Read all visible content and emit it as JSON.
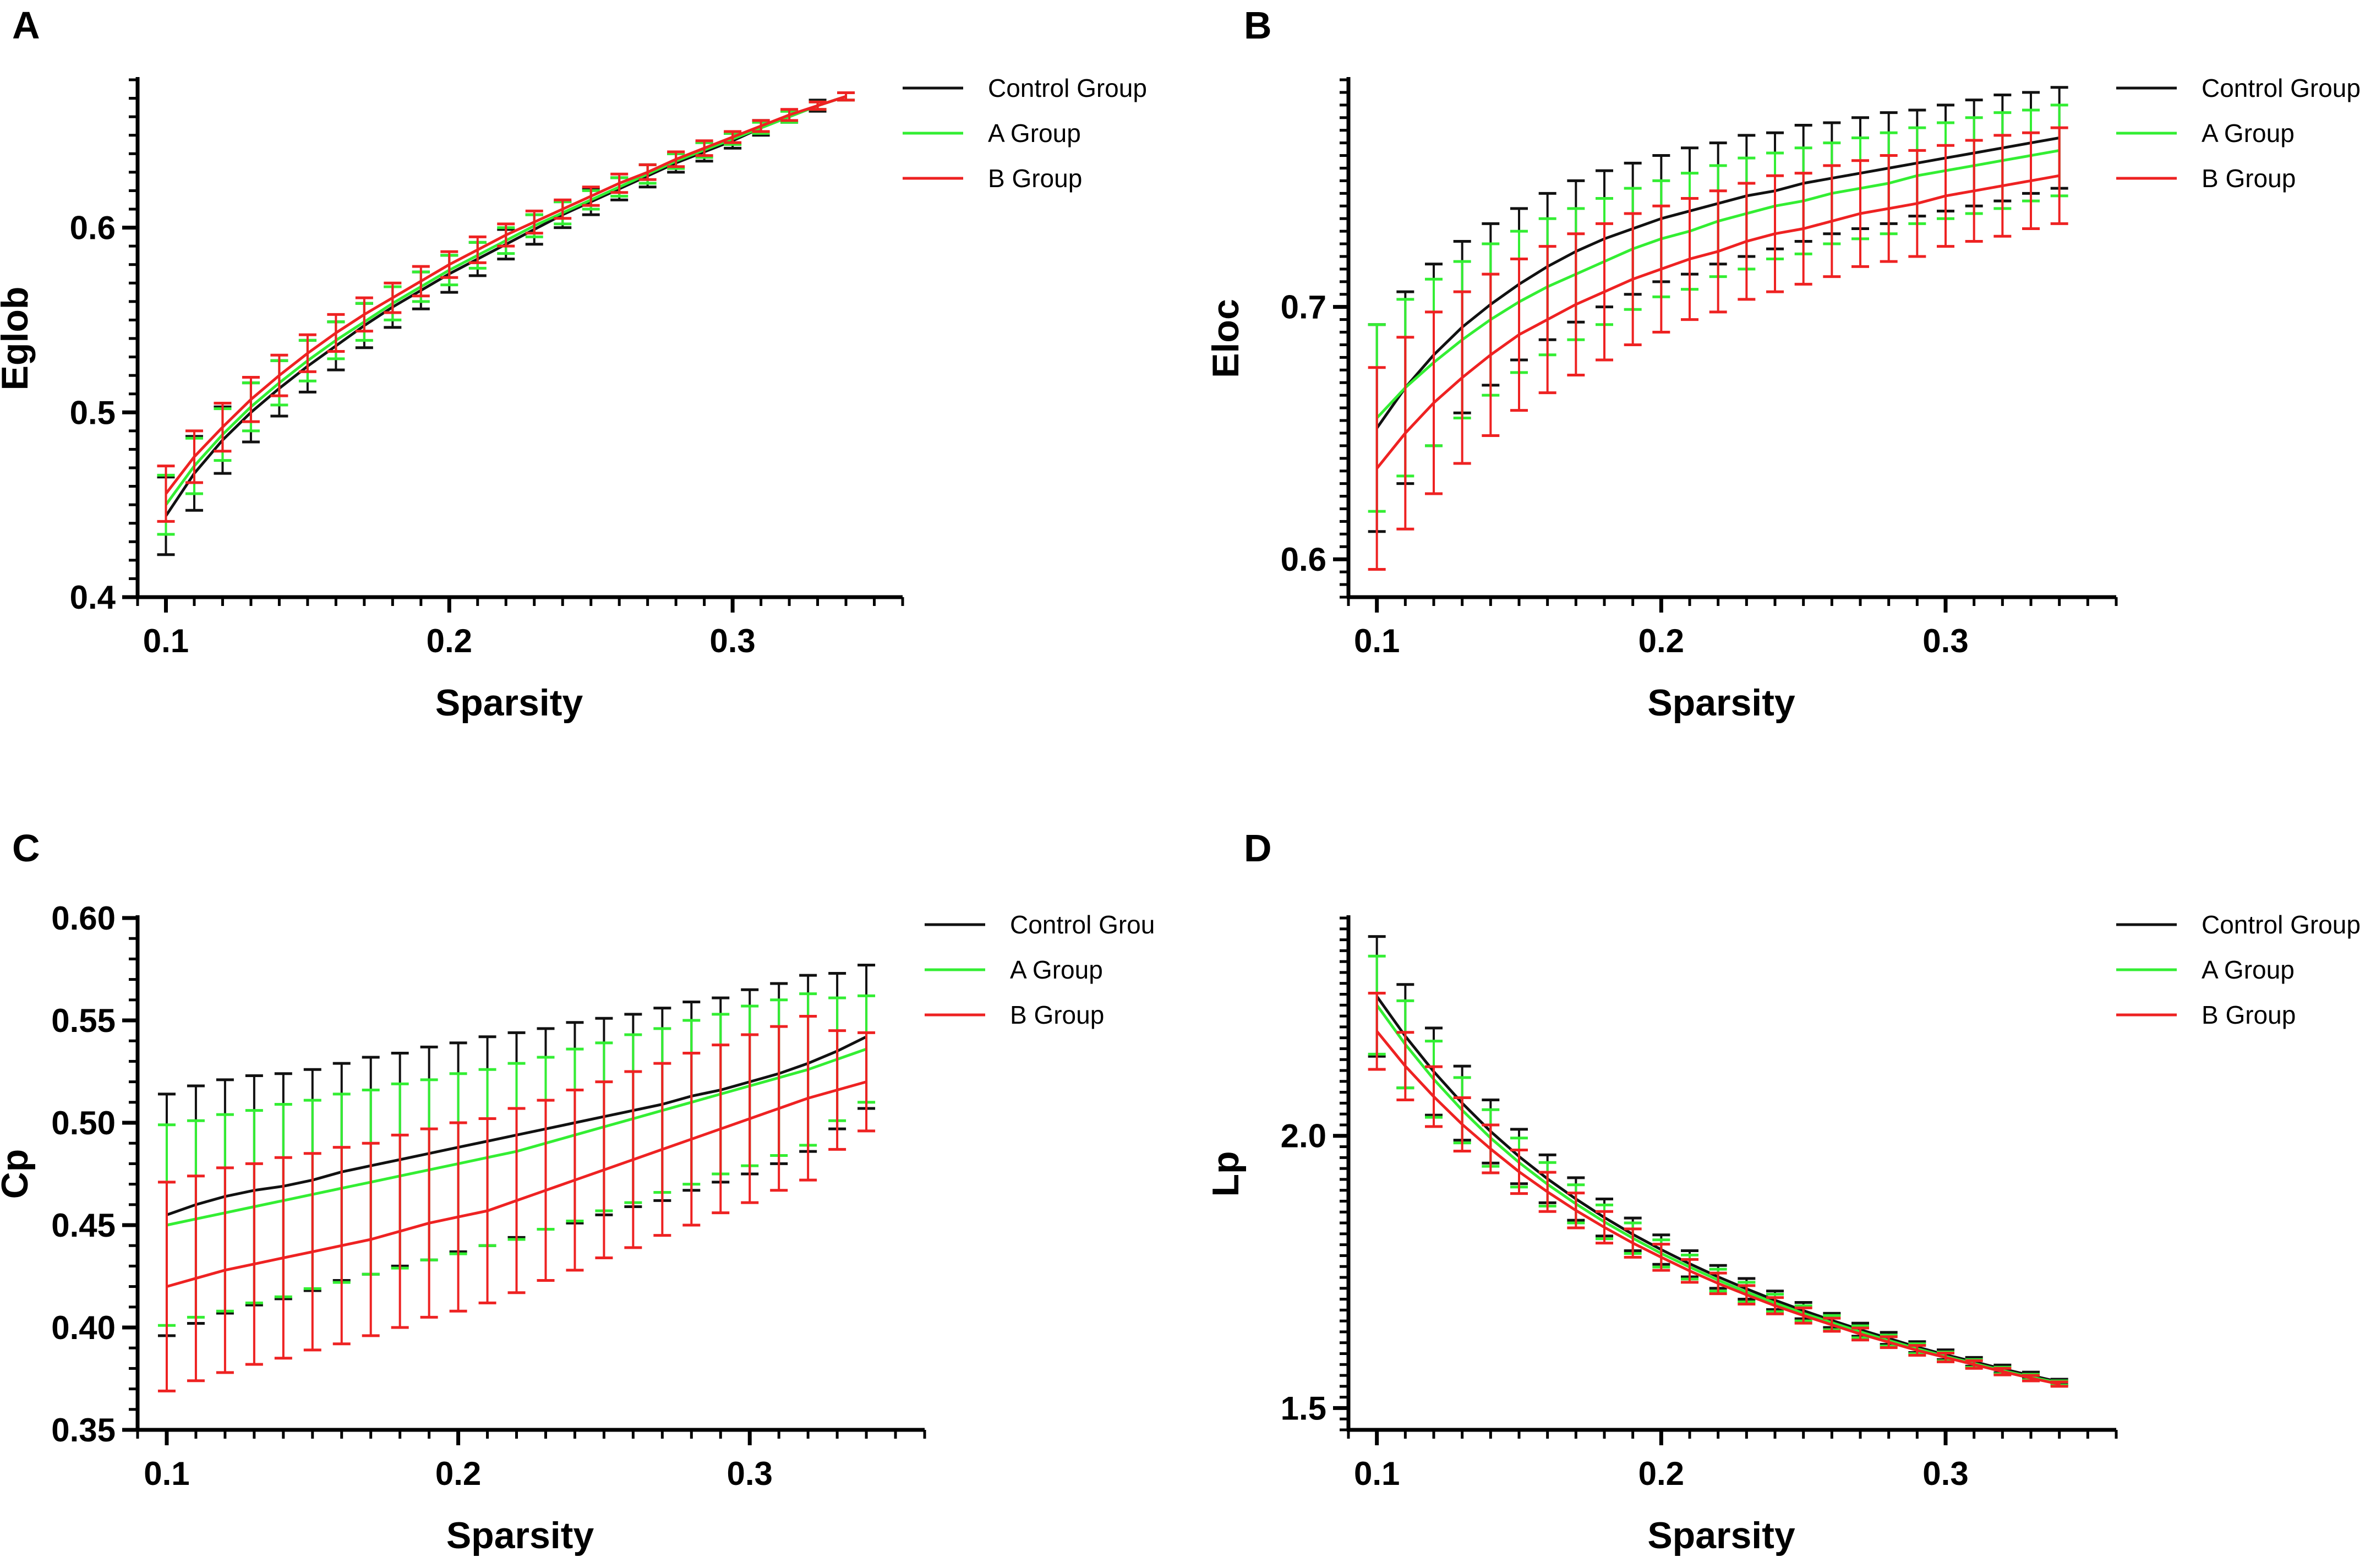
{
  "figure": {
    "series_colors": {
      "Control Group": "#111111",
      "A Group": "#33ee33",
      "B Group": "#ee2222"
    }
  },
  "chart_data": [
    {
      "panel": "A",
      "type": "line",
      "xlabel": "Sparsity",
      "ylabel": "Eglob",
      "xlim": [
        0.09,
        0.36
      ],
      "ylim": [
        0.4,
        0.68
      ],
      "xticks": [
        0.1,
        0.2,
        0.3
      ],
      "xtick_labels": [
        "0.1",
        "0.2",
        "0.3"
      ],
      "yticks": [
        0.4,
        0.5,
        0.6
      ],
      "ytick_labels": [
        "0.4",
        "0.5",
        "0.6"
      ],
      "legend_position": "top-right",
      "x": [
        0.1,
        0.11,
        0.12,
        0.13,
        0.14,
        0.15,
        0.16,
        0.17,
        0.18,
        0.19,
        0.2,
        0.21,
        0.22,
        0.23,
        0.24,
        0.25,
        0.26,
        0.27,
        0.28,
        0.29,
        0.3,
        0.31,
        0.32,
        0.33,
        0.34
      ],
      "series": [
        {
          "name": "Control Group",
          "color": "#111111",
          "values": [
            0.444,
            0.467,
            0.485,
            0.5,
            0.513,
            0.525,
            0.536,
            0.547,
            0.557,
            0.566,
            0.575,
            0.583,
            0.591,
            0.599,
            0.607,
            0.614,
            0.621,
            0.628,
            0.635,
            0.641,
            0.647,
            0.654,
            0.66,
            0.666,
            0.671
          ],
          "errors": [
            0.021,
            0.02,
            0.018,
            0.016,
            0.015,
            0.014,
            0.013,
            0.012,
            0.011,
            0.01,
            0.01,
            0.009,
            0.008,
            0.008,
            0.007,
            0.007,
            0.006,
            0.006,
            0.005,
            0.005,
            0.004,
            0.004,
            0.003,
            0.003,
            0.002
          ]
        },
        {
          "name": "A Group",
          "color": "#33ee33",
          "values": [
            0.45,
            0.471,
            0.488,
            0.503,
            0.516,
            0.528,
            0.539,
            0.549,
            0.559,
            0.568,
            0.577,
            0.585,
            0.593,
            0.601,
            0.608,
            0.615,
            0.622,
            0.629,
            0.636,
            0.642,
            0.648,
            0.654,
            0.66,
            0.666,
            0.671
          ],
          "errors": [
            0.016,
            0.015,
            0.014,
            0.013,
            0.012,
            0.011,
            0.01,
            0.01,
            0.009,
            0.008,
            0.008,
            0.007,
            0.007,
            0.006,
            0.006,
            0.005,
            0.005,
            0.005,
            0.004,
            0.004,
            0.003,
            0.003,
            0.003,
            0.002,
            0.002
          ]
        },
        {
          "name": "B Group",
          "color": "#ee2222",
          "values": [
            0.456,
            0.476,
            0.492,
            0.507,
            0.52,
            0.532,
            0.543,
            0.553,
            0.562,
            0.571,
            0.58,
            0.588,
            0.596,
            0.603,
            0.61,
            0.617,
            0.624,
            0.63,
            0.637,
            0.643,
            0.649,
            0.655,
            0.661,
            0.666,
            0.671
          ],
          "errors": [
            0.015,
            0.014,
            0.013,
            0.012,
            0.011,
            0.01,
            0.01,
            0.009,
            0.008,
            0.008,
            0.007,
            0.007,
            0.006,
            0.006,
            0.005,
            0.005,
            0.005,
            0.004,
            0.004,
            0.004,
            0.003,
            0.003,
            0.003,
            0.002,
            0.002
          ]
        }
      ]
    },
    {
      "panel": "B",
      "type": "line",
      "xlabel": "Sparsity",
      "ylabel": "Eloc",
      "xlim": [
        0.09,
        0.36
      ],
      "ylim": [
        0.585,
        0.79
      ],
      "xticks": [
        0.1,
        0.2,
        0.3
      ],
      "xtick_labels": [
        "0.1",
        "0.2",
        "0.3"
      ],
      "yticks": [
        0.6,
        0.7
      ],
      "ytick_labels": [
        "0.6",
        "0.7"
      ],
      "legend_position": "top-right",
      "x": [
        0.1,
        0.11,
        0.12,
        0.13,
        0.14,
        0.15,
        0.16,
        0.17,
        0.18,
        0.19,
        0.2,
        0.21,
        0.22,
        0.23,
        0.24,
        0.25,
        0.26,
        0.27,
        0.28,
        0.29,
        0.3,
        0.31,
        0.32,
        0.33,
        0.34
      ],
      "series": [
        {
          "name": "Control Group",
          "color": "#111111",
          "values": [
            0.652,
            0.668,
            0.681,
            0.692,
            0.701,
            0.709,
            0.716,
            0.722,
            0.727,
            0.731,
            0.735,
            0.738,
            0.741,
            0.744,
            0.746,
            0.749,
            0.751,
            0.753,
            0.755,
            0.757,
            0.759,
            0.761,
            0.763,
            0.765,
            0.767
          ],
          "errors": [
            0.041,
            0.038,
            0.036,
            0.034,
            0.032,
            0.03,
            0.029,
            0.028,
            0.027,
            0.026,
            0.025,
            0.025,
            0.024,
            0.024,
            0.023,
            0.023,
            0.022,
            0.022,
            0.022,
            0.021,
            0.021,
            0.021,
            0.021,
            0.02,
            0.02
          ]
        },
        {
          "name": "A Group",
          "color": "#33ee33",
          "values": [
            0.656,
            0.668,
            0.678,
            0.687,
            0.695,
            0.702,
            0.708,
            0.713,
            0.718,
            0.723,
            0.727,
            0.73,
            0.734,
            0.737,
            0.74,
            0.742,
            0.745,
            0.747,
            0.749,
            0.752,
            0.754,
            0.756,
            0.758,
            0.76,
            0.762
          ],
          "errors": [
            0.037,
            0.035,
            0.033,
            0.031,
            0.03,
            0.028,
            0.027,
            0.026,
            0.025,
            0.024,
            0.023,
            0.023,
            0.022,
            0.022,
            0.021,
            0.021,
            0.02,
            0.02,
            0.02,
            0.019,
            0.019,
            0.019,
            0.019,
            0.018,
            0.018
          ]
        },
        {
          "name": "B Group",
          "color": "#ee2222",
          "values": [
            0.636,
            0.65,
            0.662,
            0.672,
            0.681,
            0.689,
            0.695,
            0.701,
            0.706,
            0.711,
            0.715,
            0.719,
            0.722,
            0.726,
            0.729,
            0.731,
            0.734,
            0.737,
            0.739,
            0.741,
            0.744,
            0.746,
            0.748,
            0.75,
            0.752
          ],
          "errors": [
            0.04,
            0.038,
            0.036,
            0.034,
            0.032,
            0.03,
            0.029,
            0.028,
            0.027,
            0.026,
            0.025,
            0.024,
            0.024,
            0.023,
            0.023,
            0.022,
            0.022,
            0.021,
            0.021,
            0.021,
            0.02,
            0.02,
            0.02,
            0.019,
            0.019
          ]
        }
      ]
    },
    {
      "panel": "C",
      "type": "line",
      "xlabel": "Sparsity",
      "ylabel": "Cp",
      "xlim": [
        0.09,
        0.36
      ],
      "ylim": [
        0.35,
        0.6
      ],
      "xticks": [
        0.1,
        0.2,
        0.3
      ],
      "xtick_labels": [
        "0.1",
        "0.2",
        "0.3"
      ],
      "yticks": [
        0.35,
        0.4,
        0.45,
        0.5,
        0.55,
        0.6
      ],
      "ytick_labels": [
        "0.35",
        "0.40",
        "0.45",
        "0.50",
        "0.55",
        "0.60"
      ],
      "legend_position": "top-right",
      "x": [
        0.1,
        0.11,
        0.12,
        0.13,
        0.14,
        0.15,
        0.16,
        0.17,
        0.18,
        0.19,
        0.2,
        0.21,
        0.22,
        0.23,
        0.24,
        0.25,
        0.26,
        0.27,
        0.28,
        0.29,
        0.3,
        0.31,
        0.32,
        0.33,
        0.34
      ],
      "series": [
        {
          "name": "Control Grou",
          "color": "#111111",
          "values": [
            0.455,
            0.46,
            0.464,
            0.467,
            0.469,
            0.472,
            0.476,
            0.479,
            0.482,
            0.485,
            0.488,
            0.491,
            0.494,
            0.497,
            0.5,
            0.503,
            0.506,
            0.509,
            0.513,
            0.516,
            0.52,
            0.524,
            0.529,
            0.535,
            0.542
          ],
          "errors": [
            0.059,
            0.058,
            0.057,
            0.056,
            0.055,
            0.054,
            0.053,
            0.053,
            0.052,
            0.052,
            0.051,
            0.051,
            0.05,
            0.049,
            0.049,
            0.048,
            0.047,
            0.047,
            0.046,
            0.045,
            0.045,
            0.044,
            0.043,
            0.038,
            0.035
          ]
        },
        {
          "name": "A Group",
          "color": "#33ee33",
          "values": [
            0.45,
            0.453,
            0.456,
            0.459,
            0.462,
            0.465,
            0.468,
            0.471,
            0.474,
            0.477,
            0.48,
            0.483,
            0.486,
            0.49,
            0.494,
            0.498,
            0.502,
            0.506,
            0.51,
            0.514,
            0.518,
            0.522,
            0.526,
            0.531,
            0.536
          ],
          "errors": [
            0.049,
            0.048,
            0.048,
            0.047,
            0.047,
            0.046,
            0.046,
            0.045,
            0.045,
            0.044,
            0.044,
            0.043,
            0.043,
            0.042,
            0.042,
            0.041,
            0.041,
            0.04,
            0.04,
            0.039,
            0.039,
            0.038,
            0.037,
            0.03,
            0.026
          ]
        },
        {
          "name": "B Group",
          "color": "#ee2222",
          "values": [
            0.42,
            0.424,
            0.428,
            0.431,
            0.434,
            0.437,
            0.44,
            0.443,
            0.447,
            0.451,
            0.454,
            0.457,
            0.462,
            0.467,
            0.472,
            0.477,
            0.482,
            0.487,
            0.492,
            0.497,
            0.502,
            0.507,
            0.512,
            0.516,
            0.52
          ],
          "errors": [
            0.051,
            0.05,
            0.05,
            0.049,
            0.049,
            0.048,
            0.048,
            0.047,
            0.047,
            0.046,
            0.046,
            0.045,
            0.045,
            0.044,
            0.044,
            0.043,
            0.043,
            0.042,
            0.042,
            0.041,
            0.041,
            0.04,
            0.04,
            0.029,
            0.024
          ]
        }
      ]
    },
    {
      "panel": "D",
      "type": "line",
      "xlabel": "Sparsity",
      "ylabel": "Lp",
      "xlim": [
        0.09,
        0.36
      ],
      "ylim": [
        1.46,
        2.4
      ],
      "xticks": [
        0.1,
        0.2,
        0.3
      ],
      "xtick_labels": [
        "0.1",
        "0.2",
        "0.3"
      ],
      "yticks": [
        1.5,
        2.0
      ],
      "ytick_labels": [
        "1.5",
        "2.0"
      ],
      "legend_position": "top-right",
      "x": [
        0.1,
        0.11,
        0.12,
        0.13,
        0.14,
        0.15,
        0.16,
        0.17,
        0.18,
        0.19,
        0.2,
        0.21,
        0.22,
        0.23,
        0.24,
        0.25,
        0.26,
        0.27,
        0.28,
        0.29,
        0.3,
        0.31,
        0.32,
        0.33,
        0.34
      ],
      "series": [
        {
          "name": "Control Group",
          "color": "#111111",
          "values": [
            2.256,
            2.183,
            2.118,
            2.06,
            2.008,
            1.962,
            1.921,
            1.884,
            1.85,
            1.819,
            1.791,
            1.765,
            1.741,
            1.719,
            1.698,
            1.679,
            1.661,
            1.644,
            1.628,
            1.612,
            1.598,
            1.585,
            1.572,
            1.56,
            1.548
          ],
          "errors": [
            0.11,
            0.095,
            0.08,
            0.068,
            0.058,
            0.05,
            0.044,
            0.039,
            0.034,
            0.03,
            0.027,
            0.024,
            0.021,
            0.019,
            0.017,
            0.015,
            0.013,
            0.012,
            0.011,
            0.01,
            0.009,
            0.008,
            0.007,
            0.006,
            0.005
          ]
        },
        {
          "name": "A Group",
          "color": "#33ee33",
          "values": [
            2.24,
            2.168,
            2.104,
            2.047,
            1.996,
            1.951,
            1.911,
            1.875,
            1.842,
            1.812,
            1.784,
            1.759,
            1.735,
            1.713,
            1.693,
            1.674,
            1.657,
            1.64,
            1.624,
            1.609,
            1.595,
            1.582,
            1.569,
            1.557,
            1.546
          ],
          "errors": [
            0.09,
            0.08,
            0.07,
            0.06,
            0.052,
            0.045,
            0.04,
            0.035,
            0.031,
            0.028,
            0.025,
            0.022,
            0.02,
            0.018,
            0.016,
            0.014,
            0.013,
            0.011,
            0.01,
            0.009,
            0.008,
            0.007,
            0.006,
            0.005,
            0.004
          ]
        },
        {
          "name": "B Group",
          "color": "#ee2222",
          "values": [
            2.192,
            2.128,
            2.072,
            2.021,
            1.976,
            1.934,
            1.897,
            1.863,
            1.832,
            1.803,
            1.777,
            1.752,
            1.729,
            1.708,
            1.688,
            1.67,
            1.653,
            1.636,
            1.621,
            1.606,
            1.593,
            1.58,
            1.567,
            1.555,
            1.544
          ],
          "errors": [
            0.07,
            0.062,
            0.055,
            0.049,
            0.044,
            0.04,
            0.036,
            0.032,
            0.029,
            0.026,
            0.024,
            0.021,
            0.019,
            0.017,
            0.015,
            0.014,
            0.012,
            0.011,
            0.01,
            0.009,
            0.008,
            0.007,
            0.006,
            0.005,
            0.004
          ]
        }
      ]
    }
  ]
}
